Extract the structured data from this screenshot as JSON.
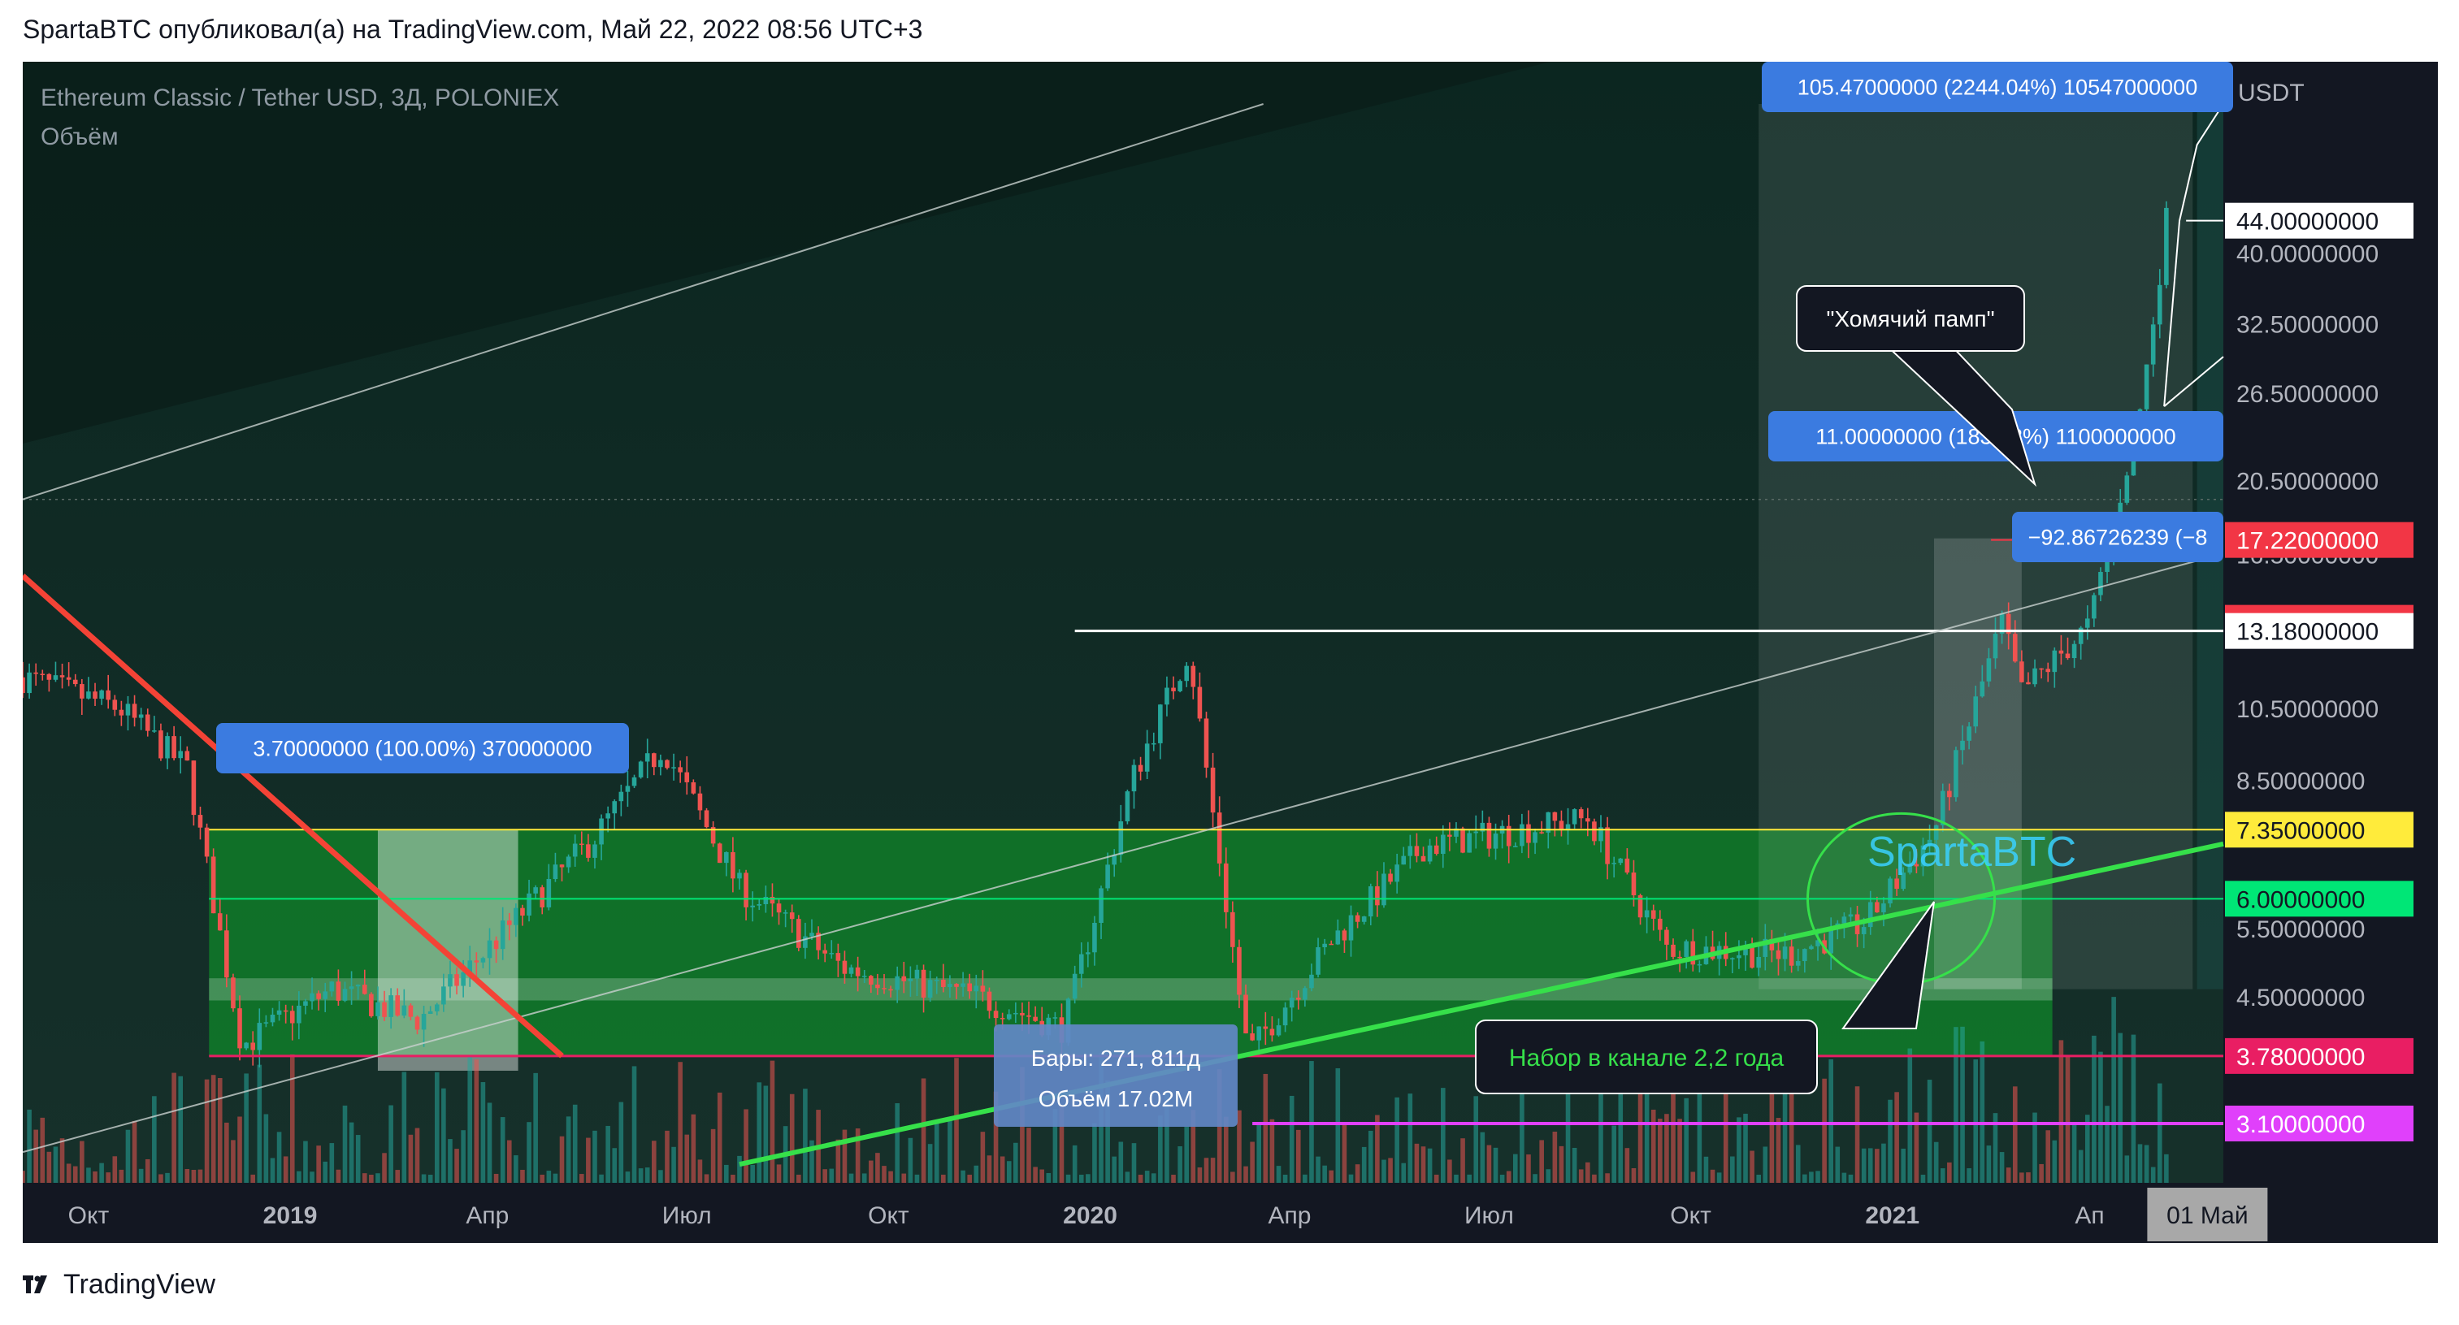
{
  "header": {
    "text": "SpartaBTC опубликовал(а) на TradingView.com, Май 22, 2022 08:56 UTC+3"
  },
  "footer": {
    "brand": "TradingView"
  },
  "chart_data": {
    "type": "candlestick",
    "symbol_line": "Ethereum Classic / Tether USD, 3Д, POLONIEX",
    "indicator_label": "Объём",
    "scale": "log",
    "y_unit": "USDT",
    "ylim": [
      2.3,
      62
    ],
    "xlim": [
      "2018-09-01",
      "2021-06-01"
    ],
    "y_ticks": [
      {
        "label": "40.00000000",
        "value": 40
      },
      {
        "label": "32.50000000",
        "value": 32.5
      },
      {
        "label": "26.50000000",
        "value": 26.5
      },
      {
        "label": "20.50000000",
        "value": 20.5
      },
      {
        "label": "16.50000000",
        "value": 16.5
      },
      {
        "label": "10.50000000",
        "value": 10.5
      },
      {
        "label": "8.50000000",
        "value": 8.5
      },
      {
        "label": "5.50000000",
        "value": 5.5
      },
      {
        "label": "4.50000000",
        "value": 4.5
      },
      {
        "label": "3.10000000",
        "value": 3.1
      }
    ],
    "x_ticks": [
      {
        "label": "Окт",
        "date": "2018-10-01",
        "bold": false
      },
      {
        "label": "2019",
        "date": "2019-01-01",
        "bold": true
      },
      {
        "label": "Апр",
        "date": "2019-04-01",
        "bold": false
      },
      {
        "label": "Июл",
        "date": "2019-07-01",
        "bold": false
      },
      {
        "label": "Окт",
        "date": "2019-10-01",
        "bold": false
      },
      {
        "label": "2020",
        "date": "2020-01-01",
        "bold": true
      },
      {
        "label": "Апр",
        "date": "2020-04-01",
        "bold": false
      },
      {
        "label": "Июл",
        "date": "2020-07-01",
        "bold": false
      },
      {
        "label": "Окт",
        "date": "2020-10-01",
        "bold": false
      },
      {
        "label": "2021",
        "date": "2021-01-01",
        "bold": true
      },
      {
        "label": "Ап",
        "date": "2021-04-01",
        "bold": false
      }
    ],
    "x_highlight": {
      "label": "01 Май",
      "date": "2021-05-01"
    },
    "price_labels": [
      {
        "label": "44.00000000",
        "value": 44,
        "bg": "#ffffff",
        "fg": "#131722"
      },
      {
        "label": "17.22000000",
        "value": 17.22,
        "bg": "#f23645",
        "fg": "#ffffff"
      },
      {
        "label": "13.50000000",
        "value": 13.5,
        "bg": "#f23645",
        "fg": "#ffffff"
      },
      {
        "label": "13.18000000",
        "value": 13.18,
        "bg": "#ffffff",
        "fg": "#131722"
      },
      {
        "label": "7.35000000",
        "value": 7.35,
        "bg": "#ffeb3b",
        "fg": "#131722"
      },
      {
        "label": "6.00000000",
        "value": 6.0,
        "bg": "#00e676",
        "fg": "#131722"
      },
      {
        "label": "3.78000000",
        "value": 3.78,
        "bg": "#e91e63",
        "fg": "#ffffff"
      },
      {
        "label": "3.10000000",
        "value": 3.1,
        "bg": "#e040fb",
        "fg": "#ffffff"
      }
    ],
    "key_points": [
      {
        "date": "2018-09-01",
        "price": 11.5
      },
      {
        "date": "2018-10-15",
        "price": 10.5
      },
      {
        "date": "2018-11-15",
        "price": 8.8
      },
      {
        "date": "2018-12-10",
        "price": 3.9
      },
      {
        "date": "2019-01-20",
        "price": 4.6
      },
      {
        "date": "2019-03-01",
        "price": 4.2
      },
      {
        "date": "2019-05-20",
        "price": 7.2
      },
      {
        "date": "2019-06-20",
        "price": 9.4
      },
      {
        "date": "2019-07-25",
        "price": 6.2
      },
      {
        "date": "2019-09-10",
        "price": 4.9
      },
      {
        "date": "2019-11-10",
        "price": 4.5
      },
      {
        "date": "2019-12-20",
        "price": 4.1
      },
      {
        "date": "2020-01-20",
        "price": 8.5
      },
      {
        "date": "2020-02-15",
        "price": 12.5
      },
      {
        "date": "2020-03-13",
        "price": 3.8
      },
      {
        "date": "2020-04-20",
        "price": 5.3
      },
      {
        "date": "2020-06-01",
        "price": 7.0
      },
      {
        "date": "2020-08-15",
        "price": 7.6
      },
      {
        "date": "2020-09-20",
        "price": 5.2
      },
      {
        "date": "2020-11-15",
        "price": 5.1
      },
      {
        "date": "2020-12-20",
        "price": 5.6
      },
      {
        "date": "2021-01-20",
        "price": 7.3
      },
      {
        "date": "2021-02-20",
        "price": 13.5
      },
      {
        "date": "2021-03-01",
        "price": 11.0
      },
      {
        "date": "2021-04-01",
        "price": 13.4
      },
      {
        "date": "2021-04-25",
        "price": 26.0
      },
      {
        "date": "2021-05-06",
        "price": 44.0
      }
    ],
    "measurements": [
      {
        "label": "105.47000000 (2244.04%) 10547000000"
      },
      {
        "label": "11.00000000 (183.33%) 1100000000"
      },
      {
        "label": "−92.86726239 (−8"
      },
      {
        "label": "3.70000000 (100.00%) 370000000"
      }
    ],
    "bars_info": {
      "line1": "Бары: 271, 811д",
      "line2": "Объём 17.02M"
    },
    "annotations": [
      {
        "text": "\"Хомячий памп\""
      },
      {
        "text": "Набор в канале 2,2 года"
      }
    ],
    "watermark": "SpartaBTC",
    "colors": {
      "background": "#131722",
      "up": "#26a69a",
      "down": "#ef5350",
      "range": "#0f8a2a",
      "trend_up": "#36e04a",
      "trend_down": "#f44336"
    }
  }
}
